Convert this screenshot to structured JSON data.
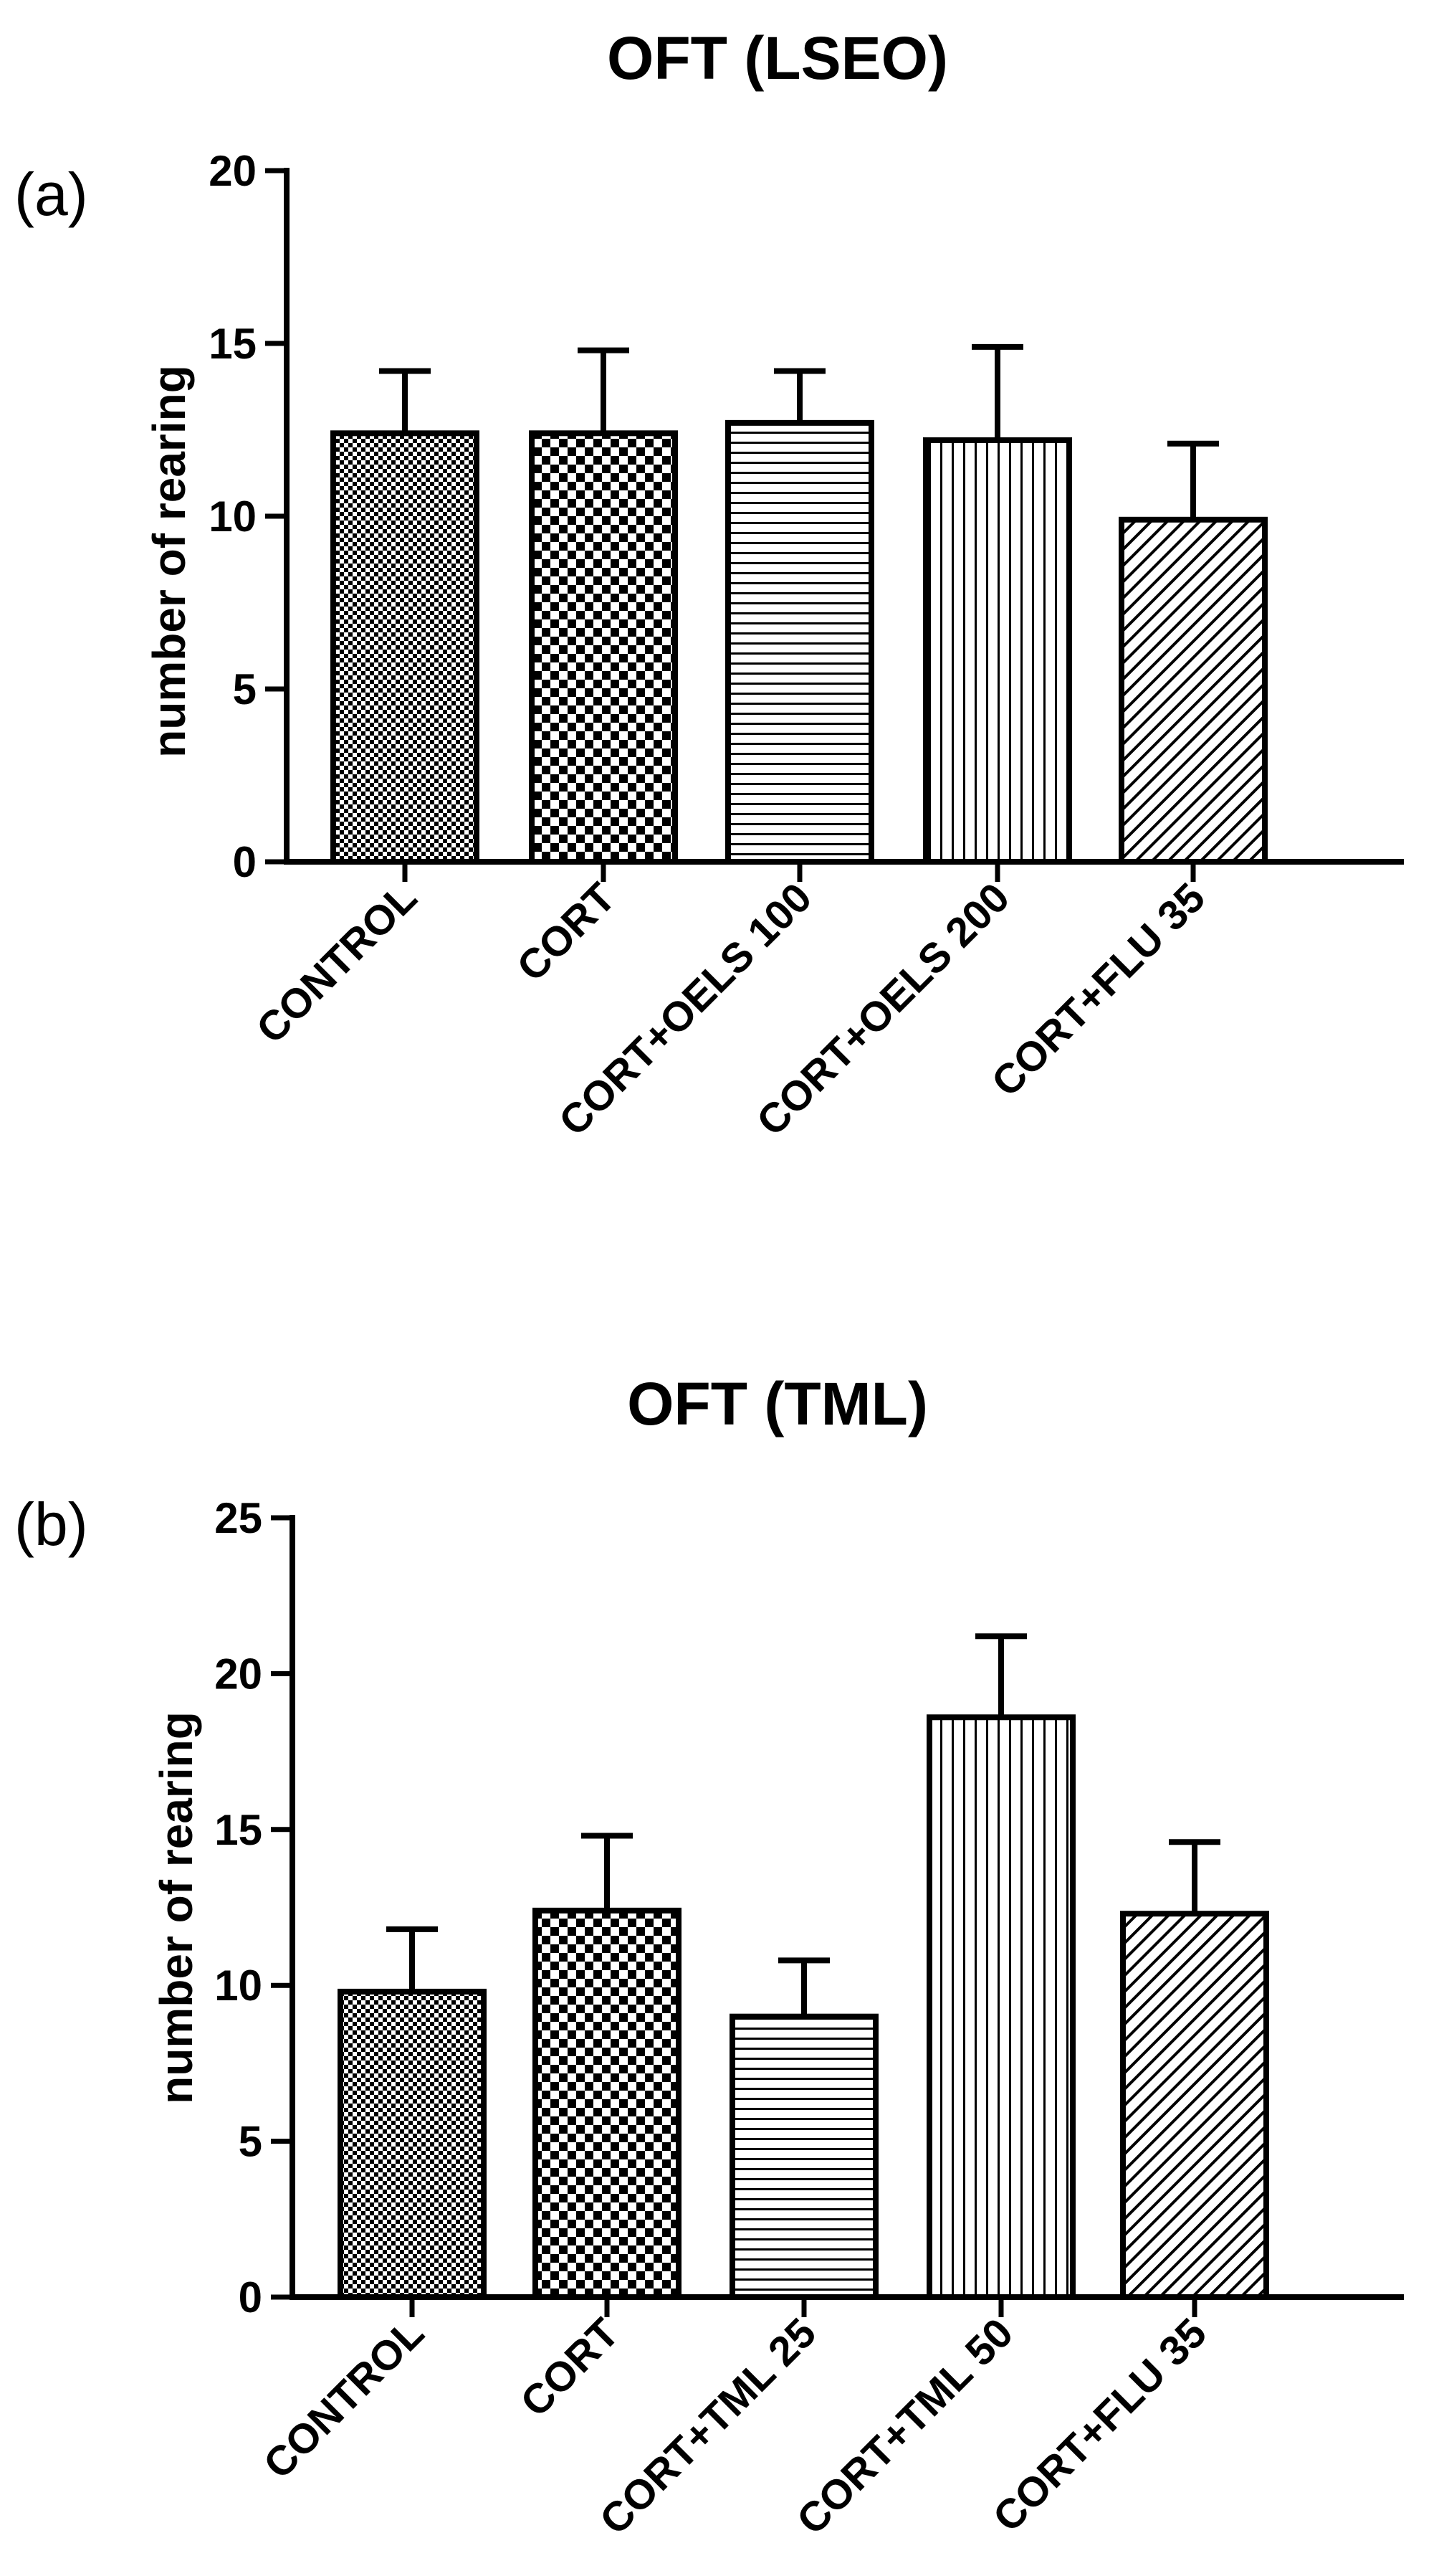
{
  "colors": {
    "ink": "#000000",
    "background": "#ffffff"
  },
  "chart_data": [
    {
      "type": "bar",
      "panel_label": "(a)",
      "title": "OFT (LSEO)",
      "xlabel": "",
      "ylabel": "number of rearing",
      "ylim": [
        0,
        20
      ],
      "yticks": [
        0,
        5,
        10,
        15,
        20
      ],
      "ytick_labels": [
        "0",
        "5",
        "10",
        "15",
        "20"
      ],
      "categories": [
        "CONTROL",
        "CORT",
        "CORT+OELS 100",
        "CORT+OELS 200",
        "CORT+FLU 35"
      ],
      "values": [
        12.4,
        12.4,
        12.7,
        12.2,
        9.9
      ],
      "error": [
        1.8,
        2.4,
        1.5,
        2.7,
        2.2
      ],
      "fill_patterns": [
        "fine-checker",
        "coarse-checker",
        "horizontal-lines",
        "vertical-lines",
        "diagonal-lines"
      ],
      "grid": false,
      "legend": "none"
    },
    {
      "type": "bar",
      "panel_label": "(b)",
      "title": "OFT (TML)",
      "xlabel": "",
      "ylabel": "number of rearing",
      "ylim": [
        0,
        25
      ],
      "yticks": [
        0,
        5,
        10,
        15,
        20,
        25
      ],
      "ytick_labels": [
        "0",
        "5",
        "10",
        "15",
        "20",
        "25"
      ],
      "categories": [
        "CONTROL",
        "CORT",
        "CORT+TML 25",
        "CORT+TML 50",
        "CORT+FLU 35"
      ],
      "values": [
        9.8,
        12.4,
        9.0,
        18.6,
        12.3
      ],
      "error": [
        2.0,
        2.4,
        1.8,
        2.6,
        2.3
      ],
      "fill_patterns": [
        "fine-checker",
        "coarse-checker",
        "horizontal-lines",
        "vertical-lines",
        "diagonal-lines"
      ],
      "grid": false,
      "legend": "none"
    }
  ]
}
